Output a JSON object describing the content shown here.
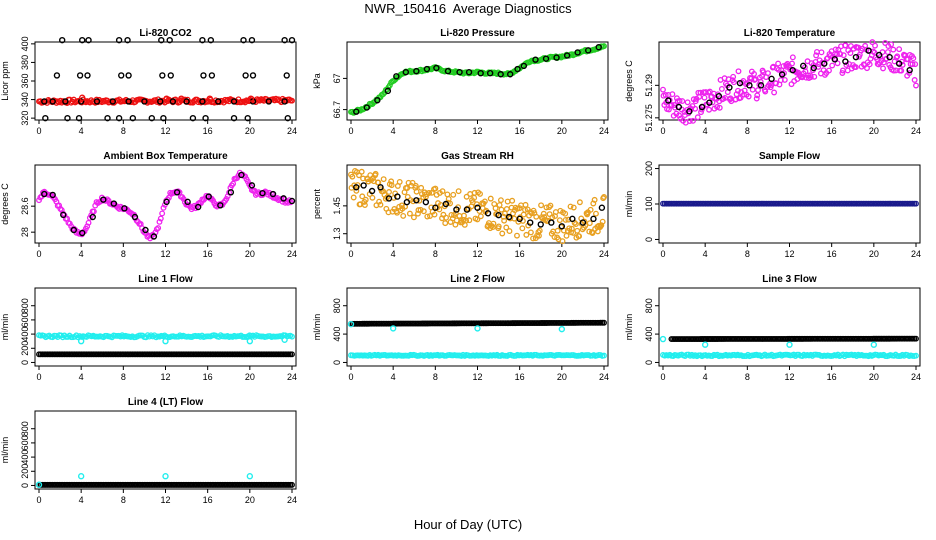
{
  "page": {
    "title": "NWR_150416  Average Diagnostics",
    "x_caption": "Hour of Day (UTC)"
  },
  "colors": {
    "red": "#ee1111",
    "green": "#22cc22",
    "magenta": "#ee22ee",
    "orange": "#e8a020",
    "navy": "#1a1a8c",
    "cyan": "#22eeee",
    "black": "#000000"
  },
  "x_axis": {
    "range": [
      0,
      24
    ],
    "ticks": [
      0,
      4,
      8,
      12,
      16,
      20,
      24
    ]
  },
  "chart_data": [
    {
      "id": "co2",
      "type": "scatter",
      "title": "Li-820 CO2",
      "ylabel": "Licor ppm",
      "ylim": [
        318,
        402
      ],
      "yticks": [
        320,
        340,
        360,
        380,
        400
      ],
      "series": [
        {
          "color": "red",
          "fill": "band",
          "x": [
            0,
            24
          ],
          "y": [
            338,
            339
          ],
          "spread": 2
        },
        {
          "color": "black",
          "x": [
            0.5,
            1.3,
            2.5,
            4,
            5.5,
            7,
            8.5,
            10,
            11.5,
            12.7,
            14,
            15.5,
            17,
            18.5,
            20.3,
            21.8,
            23.3
          ],
          "y": [
            338,
            338,
            338,
            338,
            338,
            338,
            338,
            338,
            338,
            338,
            338,
            338,
            338,
            338,
            338,
            338,
            338
          ]
        },
        {
          "color": "black",
          "x": [
            2.2,
            4.1,
            4.7,
            7.6,
            8.4,
            11.6,
            12.4,
            15.5,
            16.3,
            19.4,
            20.2,
            23.3,
            24
          ],
          "y": [
            404,
            404,
            404,
            404,
            404,
            404,
            404,
            404,
            404,
            404,
            404,
            404,
            404
          ]
        },
        {
          "color": "black",
          "x": [
            1.7,
            3.9,
            4.6,
            7.8,
            8.5,
            11.7,
            12.5,
            15.6,
            16.4,
            19.6,
            20.3,
            23.5
          ],
          "y": [
            366,
            366,
            366,
            366,
            366,
            366,
            366,
            366,
            366,
            366,
            366,
            366
          ]
        },
        {
          "color": "black",
          "x": [
            0.6,
            2.7,
            3.8,
            6.5,
            7.6,
            8.9,
            10.7,
            11.8,
            14.6,
            15.8,
            18.5,
            19.8,
            23.6
          ],
          "y": [
            320,
            320,
            320,
            320,
            320,
            320,
            320,
            320,
            320,
            320,
            320,
            320,
            320
          ]
        },
        {
          "color": "red",
          "x": [
            4.1,
            12.1,
            13.5,
            16.2,
            20.1
          ],
          "y": [
            342,
            341,
            341,
            341,
            341
          ]
        }
      ]
    },
    {
      "id": "pressure",
      "type": "scatter",
      "title": "Li-820 Pressure",
      "ylabel": "kPa",
      "ylim": [
        66.6,
        67.35
      ],
      "yticks": [
        66.7,
        67.0
      ],
      "series": [
        {
          "color": "green",
          "fill": "path",
          "x": [
            0,
            1,
            2,
            3,
            4,
            5,
            6,
            7,
            8,
            9,
            10,
            11,
            12,
            13,
            14,
            15,
            16,
            17,
            18,
            19,
            20,
            21,
            22,
            23,
            24
          ],
          "y": [
            66.67,
            66.7,
            66.76,
            66.84,
            66.98,
            67.06,
            67.07,
            67.08,
            67.1,
            67.07,
            67.06,
            67.05,
            67.06,
            67.05,
            67.05,
            67.04,
            67.1,
            67.17,
            67.18,
            67.2,
            67.21,
            67.23,
            67.26,
            67.28,
            67.31
          ],
          "spread": 0.01
        },
        {
          "color": "black",
          "x": [
            0.5,
            1.5,
            2.5,
            3.5,
            4.3,
            5.2,
            6.2,
            7.2,
            8.1,
            9.2,
            10.3,
            11.2,
            12.3,
            13.2,
            14.2,
            15.1,
            15.8,
            16.4,
            17.5,
            18.5,
            19.5,
            20.5,
            21.5,
            22.5,
            23.5
          ],
          "y": [
            66.68,
            66.72,
            66.79,
            66.88,
            67.02,
            67.06,
            67.07,
            67.09,
            67.1,
            67.07,
            67.06,
            67.06,
            67.05,
            67.05,
            67.04,
            67.04,
            67.09,
            67.12,
            67.18,
            67.19,
            67.2,
            67.22,
            67.25,
            67.27,
            67.3
          ]
        }
      ]
    },
    {
      "id": "li820temp",
      "type": "scatter",
      "title": "Li-820 Temperature",
      "ylabel": "degrees C",
      "ylim": [
        51.274,
        51.31
      ],
      "yticks": [
        51.275,
        51.29
      ],
      "series": [
        {
          "color": "magenta",
          "fill": "cloud",
          "x": [
            0,
            1,
            2,
            3,
            4,
            5,
            6,
            7,
            8,
            9,
            10,
            11,
            12,
            13,
            14,
            15,
            16,
            17,
            18,
            19,
            20,
            21,
            22,
            23,
            24
          ],
          "y": [
            51.283,
            51.281,
            51.279,
            51.28,
            51.282,
            51.285,
            51.288,
            51.29,
            51.291,
            51.29,
            51.292,
            51.294,
            51.296,
            51.298,
            51.299,
            51.3,
            51.301,
            51.302,
            51.303,
            51.304,
            51.305,
            51.304,
            51.302,
            51.3,
            51.296
          ],
          "spread": 0.004
        },
        {
          "color": "black",
          "x": [
            0.5,
            1.5,
            2.5,
            3.7,
            4.4,
            5.3,
            6.3,
            7.3,
            8.2,
            9.3,
            10.3,
            11.3,
            12.3,
            13.3,
            14.3,
            15.3,
            16.3,
            17.3,
            18.3,
            19.5,
            20.5,
            21.5,
            22.4,
            23.4
          ],
          "y": [
            51.283,
            51.28,
            51.278,
            51.28,
            51.282,
            51.285,
            51.289,
            51.291,
            51.29,
            51.29,
            51.293,
            51.295,
            51.297,
            51.299,
            51.298,
            51.3,
            51.302,
            51.301,
            51.303,
            51.306,
            51.304,
            51.303,
            51.3,
            51.297
          ]
        }
      ]
    },
    {
      "id": "ambient",
      "type": "scatter",
      "title": "Ambient Box Temperature",
      "ylabel": "degrees C",
      "ylim": [
        27.75,
        29.55
      ],
      "yticks": [
        28.0,
        28.6
      ],
      "series": [
        {
          "color": "magenta",
          "fill": "path",
          "x": [
            0,
            0.5,
            1,
            1.5,
            2,
            2.5,
            3,
            3.5,
            4,
            4.5,
            5,
            5.5,
            6,
            6.5,
            7,
            7.5,
            8,
            8.5,
            9,
            9.5,
            10,
            10.5,
            11,
            11.5,
            12,
            12.5,
            13,
            13.5,
            14,
            14.5,
            15,
            15.5,
            16,
            16.5,
            17,
            17.5,
            18,
            18.5,
            19,
            19.5,
            20,
            20.5,
            21,
            21.5,
            22,
            22.5,
            23,
            23.5,
            24
          ],
          "y": [
            28.75,
            28.93,
            28.88,
            28.75,
            28.55,
            28.35,
            28.15,
            28.0,
            27.95,
            28.1,
            28.4,
            28.68,
            28.78,
            28.72,
            28.65,
            28.58,
            28.55,
            28.5,
            28.4,
            28.22,
            28.0,
            27.85,
            27.95,
            28.25,
            28.7,
            28.9,
            28.95,
            28.85,
            28.65,
            28.55,
            28.6,
            28.75,
            28.85,
            28.7,
            28.6,
            28.65,
            28.9,
            29.2,
            29.35,
            29.28,
            29.05,
            28.9,
            28.88,
            28.92,
            28.85,
            28.8,
            28.75,
            28.7,
            28.7
          ],
          "spread": 0.04
        },
        {
          "color": "black",
          "x": [
            0.5,
            1.3,
            2.3,
            3.3,
            4.1,
            5.1,
            6.1,
            7.1,
            8.1,
            9.1,
            10.1,
            10.9,
            12.1,
            13.1,
            14.1,
            15.1,
            16.1,
            17.2,
            18.2,
            19.2,
            20.2,
            21.2,
            22.2,
            23.2,
            24
          ],
          "y": [
            28.88,
            28.86,
            28.4,
            28.05,
            27.98,
            28.35,
            28.75,
            28.66,
            28.55,
            28.35,
            28.05,
            27.9,
            28.7,
            28.92,
            28.7,
            28.58,
            28.82,
            28.62,
            28.92,
            29.32,
            29.08,
            28.9,
            28.88,
            28.78,
            28.72
          ]
        }
      ]
    },
    {
      "id": "rh",
      "type": "scatter",
      "title": "Gas Stream RH",
      "ylabel": "percent",
      "ylim": [
        1.25,
        1.67
      ],
      "yticks": [
        1.3,
        1.45
      ],
      "series": [
        {
          "color": "orange",
          "fill": "cloud",
          "x": [
            0,
            1,
            2,
            3,
            4,
            5,
            6,
            7,
            8,
            9,
            10,
            11,
            12,
            13,
            14,
            15,
            16,
            17,
            18,
            19,
            20,
            21,
            22,
            23,
            24
          ],
          "y": [
            1.54,
            1.55,
            1.54,
            1.52,
            1.5,
            1.49,
            1.48,
            1.47,
            1.46,
            1.45,
            1.44,
            1.43,
            1.43,
            1.42,
            1.4,
            1.39,
            1.38,
            1.37,
            1.36,
            1.36,
            1.35,
            1.37,
            1.38,
            1.39,
            1.41
          ],
          "spread": 0.06
        },
        {
          "color": "black",
          "x": [
            0.5,
            1.2,
            2.0,
            2.8,
            3.6,
            4.4,
            5.3,
            6.2,
            7.1,
            8.0,
            9.0,
            10.0,
            11.0,
            12.0,
            13.0,
            14.0,
            15.0,
            16.0,
            17.0,
            18.0,
            19.0,
            20.0,
            21.0,
            22.0,
            23.0,
            23.8
          ],
          "y": [
            1.55,
            1.56,
            1.53,
            1.55,
            1.49,
            1.5,
            1.47,
            1.48,
            1.47,
            1.44,
            1.46,
            1.43,
            1.43,
            1.44,
            1.41,
            1.4,
            1.39,
            1.38,
            1.36,
            1.35,
            1.36,
            1.34,
            1.38,
            1.36,
            1.38,
            1.44
          ]
        }
      ]
    },
    {
      "id": "sampleflow",
      "type": "scatter",
      "title": "Sample Flow",
      "ylabel": "ml/min",
      "ylim": [
        -10,
        210
      ],
      "yticks": [
        0,
        100,
        200
      ],
      "series": [
        {
          "color": "navy",
          "fill": "line",
          "x": [
            0,
            24
          ],
          "y": [
            101,
            101
          ]
        }
      ]
    },
    {
      "id": "line1",
      "type": "scatter",
      "title": "Line 1 Flow",
      "ylabel": "ml/min",
      "ylim": [
        -50,
        1050
      ],
      "yticks": [
        0,
        200,
        400,
        600,
        800
      ],
      "series": [
        {
          "color": "cyan",
          "fill": "line",
          "x": [
            0,
            24
          ],
          "y": [
            370,
            370
          ],
          "spread": 15
        },
        {
          "color": "black",
          "fill": "line",
          "x": [
            0,
            24
          ],
          "y": [
            115,
            115
          ]
        },
        {
          "color": "cyan",
          "x": [
            4,
            12,
            20,
            23.3
          ],
          "y": [
            300,
            300,
            300,
            320
          ]
        }
      ]
    },
    {
      "id": "line2",
      "type": "scatter",
      "title": "Line 2 Flow",
      "ylabel": "ml/min",
      "ylim": [
        -50,
        1050
      ],
      "yticks": [
        0,
        400,
        800
      ],
      "series": [
        {
          "color": "cyan",
          "fill": "line",
          "x": [
            0,
            24
          ],
          "y": [
            100,
            100
          ],
          "spread": 8
        },
        {
          "color": "black",
          "fill": "line",
          "x": [
            0,
            24
          ],
          "y": [
            545,
            560
          ]
        },
        {
          "color": "cyan",
          "x": [
            0,
            4,
            12,
            20
          ],
          "y": [
            540,
            480,
            480,
            470
          ]
        }
      ]
    },
    {
      "id": "line3",
      "type": "scatter",
      "title": "Line 3 Flow",
      "ylabel": "ml/min",
      "ylim": [
        -50,
        1050
      ],
      "yticks": [
        0,
        400,
        800
      ],
      "series": [
        {
          "color": "cyan",
          "fill": "line",
          "x": [
            0,
            24
          ],
          "y": [
            100,
            100
          ],
          "spread": 12
        },
        {
          "color": "black",
          "fill": "line",
          "x": [
            0.8,
            24
          ],
          "y": [
            330,
            335
          ]
        },
        {
          "color": "cyan",
          "x": [
            0,
            4,
            12,
            20
          ],
          "y": [
            330,
            250,
            250,
            250
          ]
        }
      ]
    },
    {
      "id": "line4",
      "type": "scatter",
      "title": "Line 4 (LT) Flow",
      "ylabel": "ml/min",
      "ylim": [
        -50,
        1050
      ],
      "yticks": [
        0,
        200,
        400,
        600,
        800
      ],
      "series": [
        {
          "color": "black",
          "fill": "line",
          "x": [
            0,
            24
          ],
          "y": [
            8,
            8
          ]
        },
        {
          "color": "cyan",
          "x": [
            0,
            4,
            12,
            20
          ],
          "y": [
            10,
            130,
            130,
            130
          ]
        }
      ]
    }
  ]
}
